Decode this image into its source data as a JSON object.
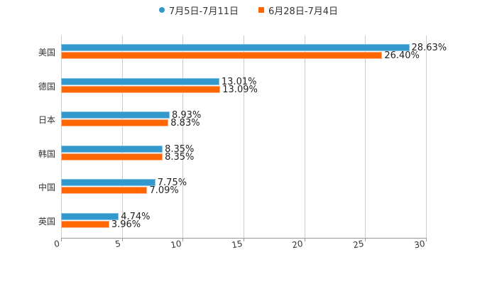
{
  "chart_data": {
    "type": "bar",
    "orientation": "horizontal",
    "title": "",
    "xlabel": "",
    "ylabel": "",
    "xlim": [
      0,
      30
    ],
    "x_ticks": [
      "0",
      "5",
      "10",
      "15",
      "20",
      "25",
      "30"
    ],
    "grid": true,
    "legend_position": "top",
    "categories": [
      "美国",
      "德国",
      "日本",
      "韩国",
      "中国",
      "英国"
    ],
    "series": [
      {
        "name": "7月5日-7月11日",
        "color": "#3399cc",
        "values": [
          28.63,
          13.01,
          8.93,
          8.35,
          7.75,
          4.74
        ],
        "labels": [
          "28.63%",
          "13.01%",
          "8.93%",
          "8.35%",
          "7.75%",
          "4.74%"
        ]
      },
      {
        "name": "6月28日-7月4日",
        "color": "#ff6600",
        "values": [
          26.4,
          13.09,
          8.83,
          8.35,
          7.09,
          3.96
        ],
        "labels": [
          "26.40%",
          "13.09%",
          "8.83%",
          "8.35%",
          "7.09%",
          "3.96%"
        ]
      }
    ]
  },
  "legend": {
    "items": [
      {
        "label": "7月5日-7月11日",
        "icon": "circle-marker",
        "color": "#3399cc"
      },
      {
        "label": "6月28日-7月4日",
        "icon": "square-marker",
        "color": "#ff6600"
      }
    ]
  }
}
